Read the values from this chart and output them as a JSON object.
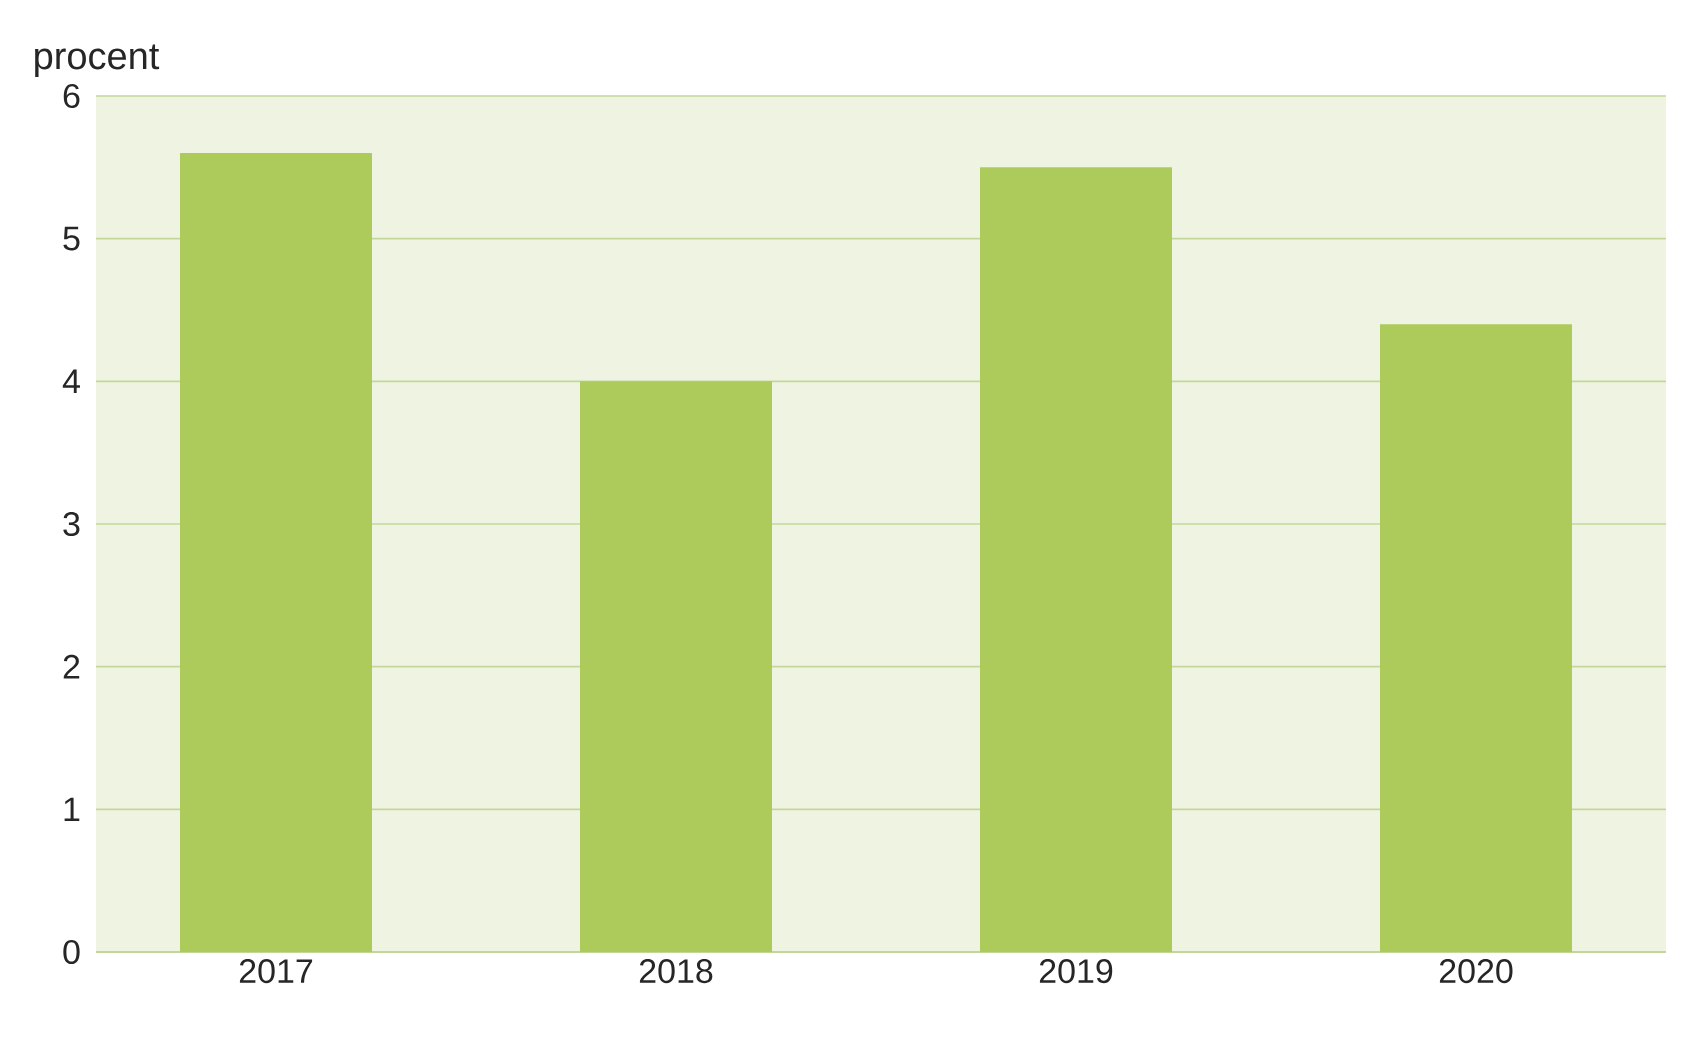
{
  "chart_data": {
    "type": "bar",
    "ylabel": "procent",
    "categories": [
      "2017",
      "2018",
      "2019",
      "2020"
    ],
    "values": [
      5.6,
      4.0,
      5.5,
      4.4
    ],
    "color": "#adcb5b",
    "ylim": [
      0,
      6
    ],
    "yticks": [
      0,
      1,
      2,
      3,
      4,
      5,
      6
    ],
    "grid": "y"
  }
}
